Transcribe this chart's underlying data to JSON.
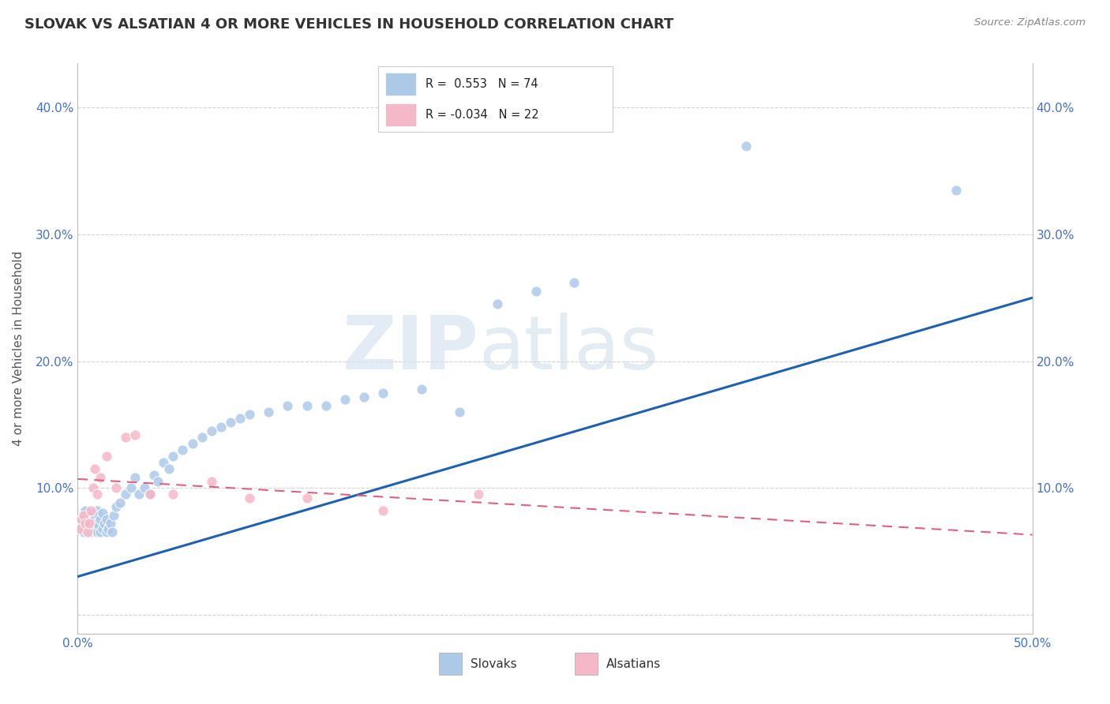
{
  "title": "SLOVAK VS ALSATIAN 4 OR MORE VEHICLES IN HOUSEHOLD CORRELATION CHART",
  "source": "Source: ZipAtlas.com",
  "ylabel": "4 or more Vehicles in Household",
  "xlim": [
    0.0,
    0.5
  ],
  "ylim": [
    -0.015,
    0.435
  ],
  "xticks": [
    0.0,
    0.1,
    0.2,
    0.3,
    0.4,
    0.5
  ],
  "xtick_labels": [
    "0.0%",
    "",
    "",
    "",
    "",
    "50.0%"
  ],
  "yticks": [
    0.0,
    0.1,
    0.2,
    0.3,
    0.4
  ],
  "ytick_labels_left": [
    "",
    "10.0%",
    "20.0%",
    "30.0%",
    "40.0%"
  ],
  "ytick_labels_right": [
    "",
    "10.0%",
    "20.0%",
    "30.0%",
    "40.0%"
  ],
  "slovak_color": "#adc9e8",
  "alsatian_color": "#f5b8c8",
  "slovak_line_color": "#2060b0",
  "alsatian_line_color": "#e06080",
  "R_slovak": 0.553,
  "N_slovak": 74,
  "R_alsatian": -0.034,
  "N_alsatian": 22,
  "watermark_zip": "ZIP",
  "watermark_atlas": "atlas",
  "background_color": "#ffffff",
  "grid_color": "#d0d0d0",
  "slovak_x": [
    0.001,
    0.002,
    0.002,
    0.003,
    0.003,
    0.003,
    0.004,
    0.004,
    0.004,
    0.005,
    0.005,
    0.005,
    0.006,
    0.006,
    0.006,
    0.007,
    0.007,
    0.007,
    0.008,
    0.008,
    0.008,
    0.009,
    0.009,
    0.01,
    0.01,
    0.01,
    0.011,
    0.011,
    0.012,
    0.012,
    0.013,
    0.013,
    0.014,
    0.015,
    0.015,
    0.016,
    0.017,
    0.018,
    0.019,
    0.02,
    0.022,
    0.025,
    0.028,
    0.03,
    0.032,
    0.035,
    0.038,
    0.04,
    0.042,
    0.045,
    0.048,
    0.05,
    0.055,
    0.06,
    0.065,
    0.07,
    0.075,
    0.08,
    0.085,
    0.09,
    0.1,
    0.11,
    0.12,
    0.13,
    0.14,
    0.15,
    0.16,
    0.18,
    0.2,
    0.22,
    0.24,
    0.26,
    0.35,
    0.46
  ],
  "slovak_y": [
    0.07,
    0.068,
    0.075,
    0.065,
    0.072,
    0.08,
    0.068,
    0.074,
    0.082,
    0.07,
    0.075,
    0.065,
    0.068,
    0.078,
    0.072,
    0.065,
    0.07,
    0.078,
    0.067,
    0.073,
    0.08,
    0.068,
    0.075,
    0.065,
    0.072,
    0.082,
    0.07,
    0.078,
    0.065,
    0.075,
    0.068,
    0.08,
    0.072,
    0.065,
    0.075,
    0.068,
    0.072,
    0.065,
    0.078,
    0.085,
    0.088,
    0.095,
    0.1,
    0.108,
    0.095,
    0.1,
    0.095,
    0.11,
    0.105,
    0.12,
    0.115,
    0.125,
    0.13,
    0.135,
    0.14,
    0.145,
    0.148,
    0.152,
    0.155,
    0.158,
    0.16,
    0.165,
    0.165,
    0.165,
    0.17,
    0.172,
    0.175,
    0.178,
    0.16,
    0.245,
    0.255,
    0.262,
    0.37,
    0.335
  ],
  "alsatian_x": [
    0.001,
    0.002,
    0.003,
    0.004,
    0.005,
    0.006,
    0.007,
    0.008,
    0.009,
    0.01,
    0.012,
    0.015,
    0.02,
    0.025,
    0.03,
    0.038,
    0.05,
    0.07,
    0.09,
    0.12,
    0.16,
    0.21
  ],
  "alsatian_y": [
    0.068,
    0.075,
    0.078,
    0.072,
    0.065,
    0.072,
    0.082,
    0.1,
    0.115,
    0.095,
    0.108,
    0.125,
    0.1,
    0.14,
    0.142,
    0.095,
    0.095,
    0.105,
    0.092,
    0.092,
    0.082,
    0.095
  ]
}
